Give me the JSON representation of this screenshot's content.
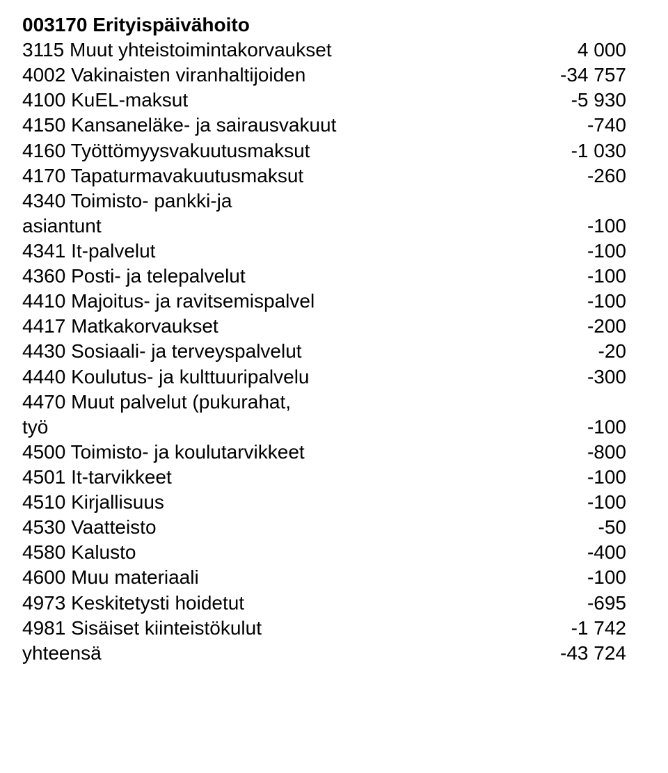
{
  "heading": "003170 Erityispäivähoito",
  "rows": [
    {
      "label": "3115 Muut yhteistoimintakorvaukset",
      "value": "4 000"
    },
    {
      "label": "4002 Vakinaisten viranhaltijoiden",
      "value": "-34 757"
    },
    {
      "label": "4100 KuEL-maksut",
      "value": "-5 930"
    },
    {
      "label": "4150 Kansaneläke- ja sairausvakuut",
      "value": "-740"
    },
    {
      "label": "4160 Työttömyysvakuutusmaksut",
      "value": "-1 030"
    },
    {
      "label": "4170 Tapaturmavakuutusmaksut",
      "value": "-260"
    },
    {
      "label_lines": [
        "4340 Toimisto- pankki-ja",
        "asiantunt"
      ],
      "value": "-100"
    },
    {
      "label": "4341 It-palvelut",
      "value": "-100"
    },
    {
      "label": "4360 Posti- ja telepalvelut",
      "value": "-100"
    },
    {
      "label": "4410 Majoitus- ja ravitsemispalvel",
      "value": "-100"
    },
    {
      "label": "4417 Matkakorvaukset",
      "value": "-200"
    },
    {
      "label": "4430 Sosiaali- ja terveyspalvelut",
      "value": "-20"
    },
    {
      "label": "4440 Koulutus- ja kulttuuripalvelu",
      "value": "-300"
    },
    {
      "label_lines": [
        "4470 Muut palvelut (pukurahat,",
        "työ"
      ],
      "value": "-100"
    },
    {
      "label": "4500 Toimisto- ja koulutarvikkeet",
      "value": "-800"
    },
    {
      "label": "4501 It-tarvikkeet",
      "value": "-100"
    },
    {
      "label": "4510 Kirjallisuus",
      "value": "-100"
    },
    {
      "label": "4530 Vaatteisto",
      "value": "-50"
    },
    {
      "label": "4580 Kalusto",
      "value": "-400"
    },
    {
      "label": "4600 Muu materiaali",
      "value": "-100"
    },
    {
      "label": "4973 Keskitetysti hoidetut",
      "value": "-695"
    },
    {
      "label": "4981 Sisäiset kiinteistökulut",
      "value": "-1 742"
    },
    {
      "label": "yhteensä",
      "value": "-43 724"
    }
  ]
}
